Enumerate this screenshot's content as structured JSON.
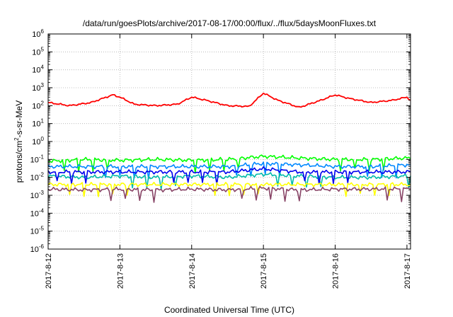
{
  "chart_data": {
    "type": "line",
    "title": "/data/run/goesPlots/archive/2017-08-17/00:00/flux/../flux/5daysMoonFluxes.txt",
    "xlabel": "Coordinated Universal Time (UTC)",
    "ylabel_base": "protons/cm",
    "ylabel_exp": "2",
    "ylabel_tail": "-s-sr-MeV",
    "y_scale": "log",
    "ylim_exp": [
      -6,
      6
    ],
    "y_tick_labels": [
      {
        "base": "10",
        "exp": "6"
      },
      {
        "base": "10",
        "exp": "5"
      },
      {
        "base": "10",
        "exp": "4"
      },
      {
        "base": "10",
        "exp": "3"
      },
      {
        "base": "10",
        "exp": "2"
      },
      {
        "base": "10",
        "exp": "1"
      },
      {
        "base": "10",
        "exp": "0"
      },
      {
        "base": "10",
        "exp": "-1"
      },
      {
        "base": "10",
        "exp": "-2"
      },
      {
        "base": "10",
        "exp": "-3"
      },
      {
        "base": "10",
        "exp": "-4"
      },
      {
        "base": "10",
        "exp": "-5"
      },
      {
        "base": "10",
        "exp": "-6"
      }
    ],
    "x_tick_labels": [
      "2017-8-12",
      "2017-8-13",
      "2017-8-14",
      "2017-8-15",
      "2017-8-16",
      "2017-8-17"
    ],
    "xlim_days": [
      0,
      5.05
    ],
    "grid": true,
    "series": [
      {
        "color": "#ff0000",
        "points": [
          [
            0.0,
            150
          ],
          [
            0.3,
            100
          ],
          [
            0.6,
            150
          ],
          [
            0.9,
            400
          ],
          [
            1.0,
            300
          ],
          [
            1.2,
            120
          ],
          [
            1.5,
            100
          ],
          [
            1.8,
            120
          ],
          [
            2.0,
            300
          ],
          [
            2.2,
            200
          ],
          [
            2.5,
            100
          ],
          [
            2.8,
            90
          ],
          [
            3.0,
            500
          ],
          [
            3.2,
            200
          ],
          [
            3.5,
            80
          ],
          [
            3.8,
            200
          ],
          [
            4.0,
            400
          ],
          [
            4.2,
            250
          ],
          [
            4.5,
            150
          ],
          [
            4.8,
            200
          ],
          [
            5.0,
            300
          ],
          [
            5.05,
            200
          ]
        ]
      },
      {
        "color": "#00ff00",
        "points": [
          [
            0.0,
            0.08
          ],
          [
            0.5,
            0.1
          ],
          [
            1.0,
            0.09
          ],
          [
            1.5,
            0.1
          ],
          [
            2.0,
            0.09
          ],
          [
            2.5,
            0.1
          ],
          [
            3.0,
            0.15
          ],
          [
            3.5,
            0.12
          ],
          [
            4.0,
            0.1
          ],
          [
            4.5,
            0.1
          ],
          [
            5.0,
            0.12
          ],
          [
            5.05,
            0.11
          ]
        ]
      },
      {
        "color": "#0088ff",
        "points": [
          [
            0.0,
            0.04
          ],
          [
            0.5,
            0.04
          ],
          [
            1.0,
            0.04
          ],
          [
            1.5,
            0.04
          ],
          [
            2.0,
            0.04
          ],
          [
            2.5,
            0.04
          ],
          [
            3.0,
            0.06
          ],
          [
            3.5,
            0.05
          ],
          [
            4.0,
            0.04
          ],
          [
            4.5,
            0.04
          ],
          [
            5.0,
            0.05
          ],
          [
            5.05,
            0.05
          ]
        ]
      },
      {
        "color": "#00bbaa",
        "points": [
          [
            0.0,
            0.012
          ],
          [
            0.5,
            0.01
          ],
          [
            1.0,
            0.012
          ],
          [
            1.5,
            0.01
          ],
          [
            2.0,
            0.012
          ],
          [
            2.5,
            0.01
          ],
          [
            3.0,
            0.015
          ],
          [
            3.5,
            0.012
          ],
          [
            4.0,
            0.01
          ],
          [
            4.5,
            0.01
          ],
          [
            5.0,
            0.012
          ],
          [
            5.05,
            0.012
          ]
        ]
      },
      {
        "color": "#0000ee",
        "points": [
          [
            0.0,
            0.02
          ],
          [
            0.5,
            0.02
          ],
          [
            1.0,
            0.02
          ],
          [
            1.5,
            0.02
          ],
          [
            2.0,
            0.02
          ],
          [
            2.5,
            0.02
          ],
          [
            3.0,
            0.03
          ],
          [
            3.5,
            0.02
          ],
          [
            4.0,
            0.02
          ],
          [
            4.5,
            0.02
          ],
          [
            5.0,
            0.02
          ],
          [
            5.05,
            0.02
          ]
        ]
      },
      {
        "color": "#ffff00",
        "points": [
          [
            0.0,
            0.004
          ],
          [
            5.05,
            0.004
          ]
        ]
      },
      {
        "color": "#884466",
        "points": [
          [
            0.0,
            0.0022
          ],
          [
            0.5,
            0.002
          ],
          [
            1.0,
            0.0022
          ],
          [
            1.5,
            0.002
          ],
          [
            2.0,
            0.0022
          ],
          [
            2.5,
            0.002
          ],
          [
            3.0,
            0.0025
          ],
          [
            3.5,
            0.002
          ],
          [
            4.0,
            0.0022
          ],
          [
            4.5,
            0.0022
          ],
          [
            5.0,
            0.0023
          ],
          [
            5.05,
            0.0022
          ]
        ]
      }
    ]
  }
}
